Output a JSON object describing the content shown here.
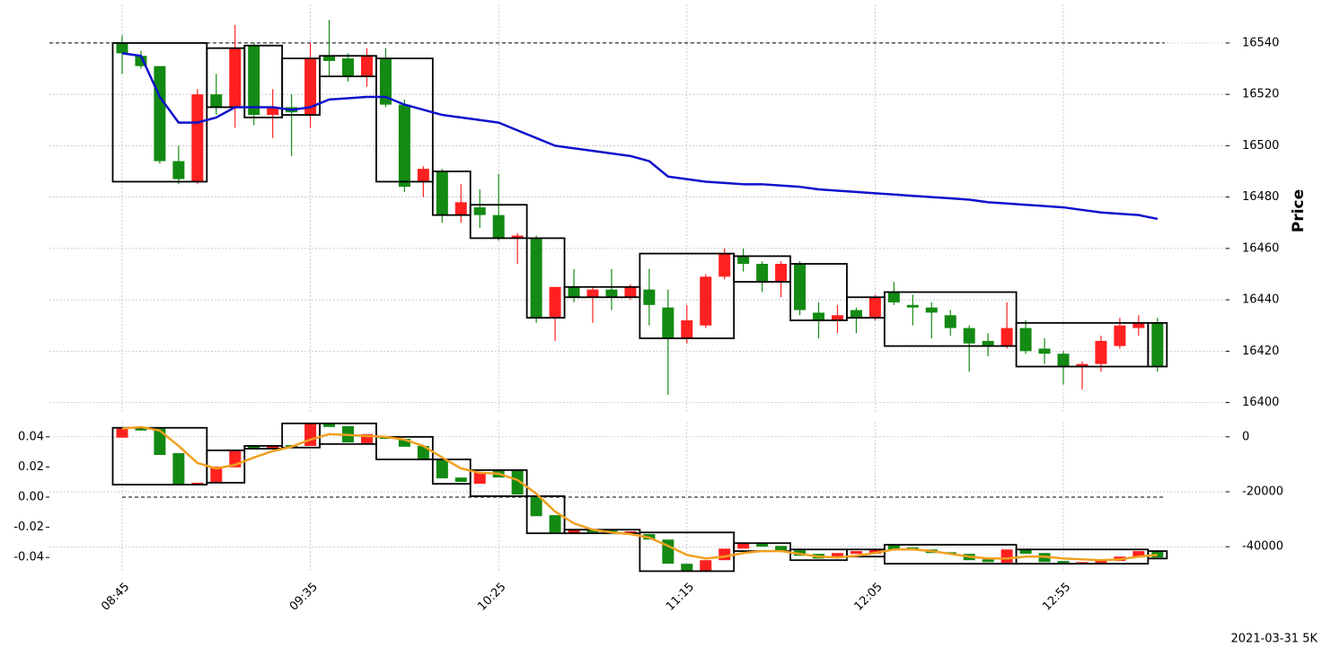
{
  "chart_data": [
    {
      "type": "candlestick",
      "ylabel": "Price",
      "ylim": [
        16396,
        16555
      ],
      "yticks": [
        16400,
        16420,
        16440,
        16460,
        16480,
        16500,
        16520,
        16540
      ],
      "grid": true,
      "up_color": "#ff2020",
      "down_color": "#138a13",
      "open": [
        16540,
        16535,
        16531,
        16494,
        16486,
        16520,
        16515,
        16539,
        16512,
        16515,
        16512,
        16535,
        16534,
        16527,
        16534,
        16516,
        16486,
        16490,
        16473,
        16476,
        16473,
        16464,
        16464,
        16433,
        16445,
        16441,
        16444,
        16441,
        16444,
        16437,
        16425,
        16430,
        16449,
        16457,
        16454,
        16447,
        16454,
        16435,
        16432,
        16436,
        16433,
        16443,
        16438,
        16437,
        16434,
        16429,
        16424,
        16422,
        16429,
        16421,
        16419,
        16414,
        16415,
        16422,
        16429,
        16431
      ],
      "high": [
        16543,
        16537,
        16531,
        16500,
        16522,
        16528,
        16547,
        16540,
        16522,
        16520,
        16540,
        16549,
        16536,
        16538,
        16538,
        16518,
        16492,
        16491,
        16485,
        16483,
        16489,
        16466,
        16465,
        16445,
        16452,
        16445,
        16452,
        16446,
        16452,
        16444,
        16438,
        16450,
        16460,
        16460,
        16455,
        16455,
        16455,
        16439,
        16438,
        16437,
        16442,
        16447,
        16442,
        16439,
        16436,
        16430,
        16427,
        16439,
        16432,
        16425,
        16420,
        16416,
        16426,
        16433,
        16434,
        16433
      ],
      "low": [
        16528,
        16530,
        16493,
        16485,
        16485,
        16512,
        16507,
        16508,
        16503,
        16496,
        16507,
        16527,
        16525,
        16523,
        16515,
        16482,
        16480,
        16470,
        16470,
        16468,
        16463,
        16454,
        16431,
        16424,
        16439,
        16431,
        16436,
        16440,
        16430,
        16403,
        16423,
        16429,
        16448,
        16451,
        16443,
        16441,
        16434,
        16425,
        16427,
        16427,
        16432,
        16438,
        16430,
        16425,
        16426,
        16412,
        16418,
        16421,
        16419,
        16415,
        16407,
        16405,
        16412,
        16421,
        16426,
        16412
      ],
      "close": [
        16536,
        16531,
        16494,
        16487,
        16520,
        16515,
        16538,
        16512,
        16515,
        16513,
        16534,
        16533,
        16527,
        16535,
        16516,
        16484,
        16491,
        16473,
        16478,
        16473,
        16464,
        16465,
        16433,
        16445,
        16441,
        16444,
        16441,
        16445,
        16438,
        16425,
        16432,
        16449,
        16458,
        16454,
        16447,
        16454,
        16436,
        16432,
        16434,
        16433,
        16441,
        16439,
        16437,
        16435,
        16429,
        16423,
        16422,
        16429,
        16420,
        16419,
        16414,
        16415,
        16424,
        16430,
        16431,
        16414
      ],
      "line": {
        "color": "#1010cc",
        "values": [
          16536,
          16535,
          16519,
          16509,
          16509,
          16511,
          16515,
          16515,
          16515,
          16514,
          16515,
          16518,
          16518.5,
          16519,
          16519,
          16516,
          16514,
          16512,
          16511,
          16510,
          16509,
          16506,
          16503,
          16500,
          16499,
          16498,
          16497,
          16496,
          16494,
          16488,
          16487,
          16486,
          16485.5,
          16485,
          16485,
          16484.5,
          16484,
          16483,
          16482.5,
          16482,
          16481.5,
          16481,
          16480.5,
          16480,
          16479.5,
          16479,
          16478,
          16477.5,
          16477,
          16476.5,
          16476,
          16475,
          16474,
          16473.5,
          16473,
          16471.5
        ]
      },
      "hline": 16540,
      "boxes": [
        {
          "from": 0,
          "to": 4,
          "top": 16540,
          "bottom": 16486
        },
        {
          "from": 5,
          "to": 6,
          "top": 16538,
          "bottom": 16515
        },
        {
          "from": 7,
          "to": 8,
          "top": 16539,
          "bottom": 16511
        },
        {
          "from": 9,
          "to": 10,
          "top": 16534,
          "bottom": 16512
        },
        {
          "from": 11,
          "to": 13,
          "top": 16535,
          "bottom": 16527
        },
        {
          "from": 14,
          "to": 16,
          "top": 16534,
          "bottom": 16486
        },
        {
          "from": 17,
          "to": 18,
          "top": 16490,
          "bottom": 16473
        },
        {
          "from": 19,
          "to": 21,
          "top": 16477,
          "bottom": 16464
        },
        {
          "from": 22,
          "to": 23,
          "top": 16464,
          "bottom": 16433
        },
        {
          "from": 24,
          "to": 27,
          "top": 16445,
          "bottom": 16441
        },
        {
          "from": 28,
          "to": 32,
          "top": 16458,
          "bottom": 16425
        },
        {
          "from": 33,
          "to": 35,
          "top": 16457,
          "bottom": 16447
        },
        {
          "from": 36,
          "to": 38,
          "top": 16454,
          "bottom": 16432
        },
        {
          "from": 39,
          "to": 40,
          "top": 16441,
          "bottom": 16433
        },
        {
          "from": 41,
          "to": 47,
          "top": 16443,
          "bottom": 16422
        },
        {
          "from": 48,
          "to": 54,
          "top": 16431,
          "bottom": 16414
        },
        {
          "from": 55,
          "to": 55,
          "top": 16431,
          "bottom": 16414
        }
      ]
    },
    {
      "type": "candlestick",
      "categories": [
        "08:45",
        null,
        null,
        null,
        null,
        null,
        null,
        null,
        null,
        null,
        "09:35",
        null,
        null,
        null,
        null,
        null,
        null,
        null,
        null,
        null,
        "10:25",
        null,
        null,
        null,
        null,
        null,
        null,
        null,
        null,
        null,
        "11:15",
        null,
        null,
        null,
        null,
        null,
        null,
        null,
        null,
        null,
        "12:05",
        null,
        null,
        null,
        null,
        null,
        null,
        null,
        null,
        null,
        "12:55",
        null,
        null,
        null,
        null,
        null
      ],
      "ylim": [
        -0.05,
        0.05
      ],
      "yticks": [
        -0.04,
        -0.02,
        {
          "value": 0,
          "label": "0.00"
        },
        0.02,
        0.04
      ],
      "y2lim": [
        -49400,
        5500
      ],
      "y2ticks": [
        -40000,
        -20000,
        0
      ],
      "grid": true,
      "candle_axis": "y2",
      "up_color": "#ff2020",
      "down_color": "#138a13",
      "open": [
        -300,
        3000,
        3000,
        -5900,
        -17400,
        -16400,
        -11100,
        -3300,
        -4300,
        -3000,
        -3300,
        4900,
        3900,
        -2300,
        0,
        -700,
        -3300,
        -8200,
        -14800,
        -17100,
        -12100,
        -12100,
        -21600,
        -28500,
        -35100,
        -33800,
        -34100,
        -35100,
        -35400,
        -37400,
        -46200,
        -48900,
        -44900,
        -40700,
        -38700,
        -39700,
        -41300,
        -42600,
        -43600,
        -42600,
        -42600,
        -39300,
        -40300,
        -41000,
        -42000,
        -42600,
        -44600,
        -45900,
        -41000,
        -42300,
        -45200,
        -46200,
        -45900,
        -45200,
        -43900,
        -41600
      ],
      "close": [
        3000,
        2300,
        -6600,
        -17400,
        -16700,
        -10800,
        -4900,
        -4300,
        -3300,
        -3600,
        4900,
        3600,
        -2000,
        1000,
        -700,
        -3600,
        -8200,
        -15100,
        -16400,
        -13100,
        -14800,
        -21000,
        -28900,
        -34800,
        -33800,
        -34800,
        -35100,
        -34400,
        -37400,
        -46200,
        -48900,
        -44900,
        -40700,
        -38700,
        -40000,
        -41300,
        -43300,
        -44300,
        -42300,
        -41600,
        -41000,
        -41000,
        -41300,
        -42300,
        -42600,
        -44900,
        -45600,
        -41000,
        -42600,
        -45600,
        -46200,
        -45600,
        -44900,
        -43600,
        -41600,
        -43900
      ],
      "line": {
        "color": "#f0a020",
        "axis": "y2",
        "values": [
          3000,
          3600,
          2300,
          -3300,
          -9500,
          -11500,
          -10200,
          -7500,
          -5200,
          -3600,
          -1000,
          1000,
          700,
          300,
          0,
          -1000,
          -3300,
          -7500,
          -11500,
          -13100,
          -13400,
          -15700,
          -20700,
          -27200,
          -31500,
          -33800,
          -34800,
          -35400,
          -36700,
          -39700,
          -43000,
          -44300,
          -43600,
          -42300,
          -41600,
          -41600,
          -42600,
          -43600,
          -43900,
          -43300,
          -42300,
          -41000,
          -41000,
          -41600,
          -42600,
          -43600,
          -44300,
          -44300,
          -43600,
          -43600,
          -44300,
          -44600,
          -44900,
          -44600,
          -43600,
          -43000
        ]
      },
      "hline": 0,
      "boxes": [
        {
          "from": 0,
          "to": 4,
          "top": 3300,
          "bottom": -17400
        },
        {
          "from": 5,
          "to": 6,
          "top": -4900,
          "bottom": -16700
        },
        {
          "from": 7,
          "to": 8,
          "top": -3300,
          "bottom": -4300
        },
        {
          "from": 9,
          "to": 10,
          "top": 4900,
          "bottom": -3900
        },
        {
          "from": 11,
          "to": 13,
          "top": 4900,
          "bottom": -2600
        },
        {
          "from": 14,
          "to": 16,
          "top": 0,
          "bottom": -8200
        },
        {
          "from": 17,
          "to": 18,
          "top": -8200,
          "bottom": -17100
        },
        {
          "from": 19,
          "to": 21,
          "top": -12100,
          "bottom": -21600
        },
        {
          "from": 22,
          "to": 23,
          "top": -21600,
          "bottom": -35100
        },
        {
          "from": 24,
          "to": 27,
          "top": -33800,
          "bottom": -35100
        },
        {
          "from": 28,
          "to": 32,
          "top": -34800,
          "bottom": -48900
        },
        {
          "from": 33,
          "to": 35,
          "top": -38700,
          "bottom": -41600
        },
        {
          "from": 36,
          "to": 38,
          "top": -41000,
          "bottom": -44900
        },
        {
          "from": 39,
          "to": 40,
          "top": -41000,
          "bottom": -43600
        },
        {
          "from": 41,
          "to": 47,
          "top": -39300,
          "bottom": -46200
        },
        {
          "from": 48,
          "to": 54,
          "top": -41000,
          "bottom": -46200
        },
        {
          "from": 55,
          "to": 55,
          "top": -41600,
          "bottom": -44300
        }
      ]
    }
  ],
  "footer": "2021-03-31 5K"
}
